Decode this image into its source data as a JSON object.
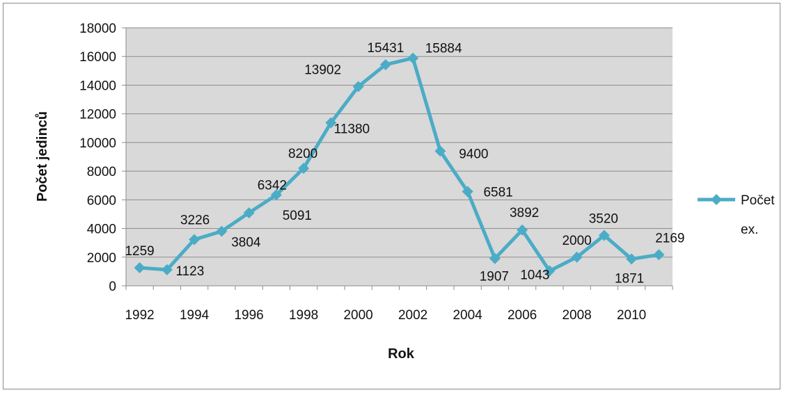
{
  "chart_data": {
    "type": "line",
    "x": [
      1992,
      1993,
      1994,
      1995,
      1996,
      1997,
      1998,
      1999,
      2000,
      2001,
      2002,
      2003,
      2004,
      2005,
      2006,
      2007,
      2008,
      2009,
      2010,
      2011
    ],
    "series": [
      {
        "name": "Počet ex.",
        "values": [
          1259,
          1123,
          3226,
          3804,
          5091,
          6342,
          8200,
          11380,
          13902,
          15431,
          15884,
          9400,
          6581,
          1907,
          3892,
          1043,
          2000,
          3520,
          1871,
          2169
        ],
        "color": "#4bacc6",
        "marker": "diamond"
      }
    ],
    "xlabel": "Rok",
    "ylabel": "Počet jedinců",
    "xticks": [
      "1992",
      "1994",
      "1996",
      "1998",
      "2000",
      "2002",
      "2004",
      "2006",
      "2008",
      "2010"
    ],
    "yticks": [
      0,
      2000,
      4000,
      6000,
      8000,
      10000,
      12000,
      14000,
      16000,
      18000
    ],
    "ylim": [
      0,
      18000
    ],
    "grid": true,
    "plot_background": "#d9d9d9",
    "legend": {
      "placement": "right",
      "lines": [
        "Počet",
        "ex."
      ]
    },
    "data_labels": true
  }
}
